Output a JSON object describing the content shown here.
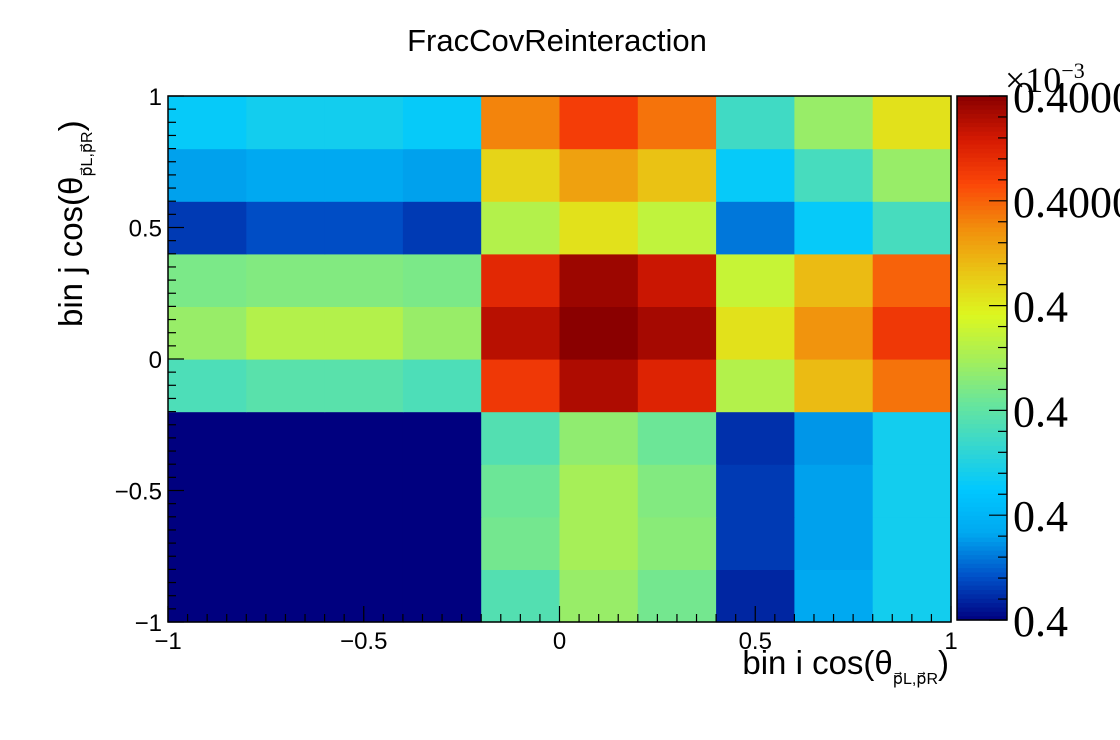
{
  "chart_data": {
    "type": "heatmap",
    "title": "FracCovReinteraction",
    "xlabel_prefix": "bin i cos(θ",
    "ylabel_prefix": "bin j cos(θ",
    "label_subscript": "p⃗L,p⃗R",
    "label_suffix": ")",
    "x_edges": [
      -1,
      -0.8,
      -0.6,
      -0.4,
      -0.2,
      0,
      0.2,
      0.4,
      0.6,
      0.8,
      1
    ],
    "y_edges": [
      -1,
      -0.8,
      -0.6,
      -0.4,
      -0.2,
      0,
      0.2,
      0.4,
      0.6,
      0.8,
      1
    ],
    "xlim": [
      -1,
      1
    ],
    "ylim": [
      -1,
      1
    ],
    "x_tick_labels": [
      "−1",
      "−0.5",
      "0",
      "0.5",
      "1"
    ],
    "x_tick_values": [
      -1,
      -0.5,
      0,
      0.5,
      1
    ],
    "y_tick_labels": [
      "−1",
      "−0.5",
      "0",
      "0.5",
      "1"
    ],
    "y_tick_values": [
      -1,
      -0.5,
      0,
      0.5,
      1
    ],
    "value_range": [
      0,
      1
    ],
    "values_note": "relative colour level per bin; colour bar tick labels all print 0.4 / 0.4000 with ×10^-3",
    "z_rows_bottom_to_top": [
      [
        0.0,
        0.0,
        0.0,
        0.0,
        0.38,
        0.48,
        0.43,
        0.04,
        0.17,
        0.28
      ],
      [
        0.0,
        0.0,
        0.0,
        0.0,
        0.43,
        0.5,
        0.46,
        0.06,
        0.16,
        0.28
      ],
      [
        0.0,
        0.0,
        0.0,
        0.0,
        0.42,
        0.5,
        0.45,
        0.06,
        0.16,
        0.28
      ],
      [
        0.0,
        0.0,
        0.0,
        0.0,
        0.38,
        0.47,
        0.42,
        0.05,
        0.15,
        0.28
      ],
      [
        0.37,
        0.39,
        0.39,
        0.37,
        0.86,
        0.96,
        0.9,
        0.52,
        0.68,
        0.78
      ],
      [
        0.48,
        0.52,
        0.52,
        0.48,
        0.95,
        1.0,
        0.97,
        0.62,
        0.74,
        0.86
      ],
      [
        0.44,
        0.45,
        0.45,
        0.44,
        0.89,
        0.98,
        0.93,
        0.55,
        0.68,
        0.8
      ],
      [
        0.06,
        0.08,
        0.08,
        0.06,
        0.52,
        0.62,
        0.54,
        0.12,
        0.26,
        0.36
      ],
      [
        0.16,
        0.17,
        0.17,
        0.16,
        0.64,
        0.72,
        0.67,
        0.26,
        0.36,
        0.48
      ],
      [
        0.26,
        0.28,
        0.28,
        0.26,
        0.76,
        0.85,
        0.78,
        0.35,
        0.48,
        0.62
      ]
    ],
    "colorbar": {
      "exponent_base": "×10",
      "exponent_power": "−3",
      "tick_labels": [
        "0.4",
        "0.4",
        "0.4",
        "0.4",
        "0.4000",
        "0.4000"
      ],
      "tick_levels": [
        0.0,
        0.2,
        0.4,
        0.6,
        0.8,
        1.0
      ]
    },
    "colormap": [
      "#00007f",
      "#0050c8",
      "#00a8f0",
      "#00c8ff",
      "#36d7cf",
      "#6ae69a",
      "#a6ef58",
      "#dcf720",
      "#eac414",
      "#f28d0c",
      "#fb4608",
      "#d61a02",
      "#8a0000"
    ],
    "grid": false,
    "legend": "colorbar-right"
  }
}
